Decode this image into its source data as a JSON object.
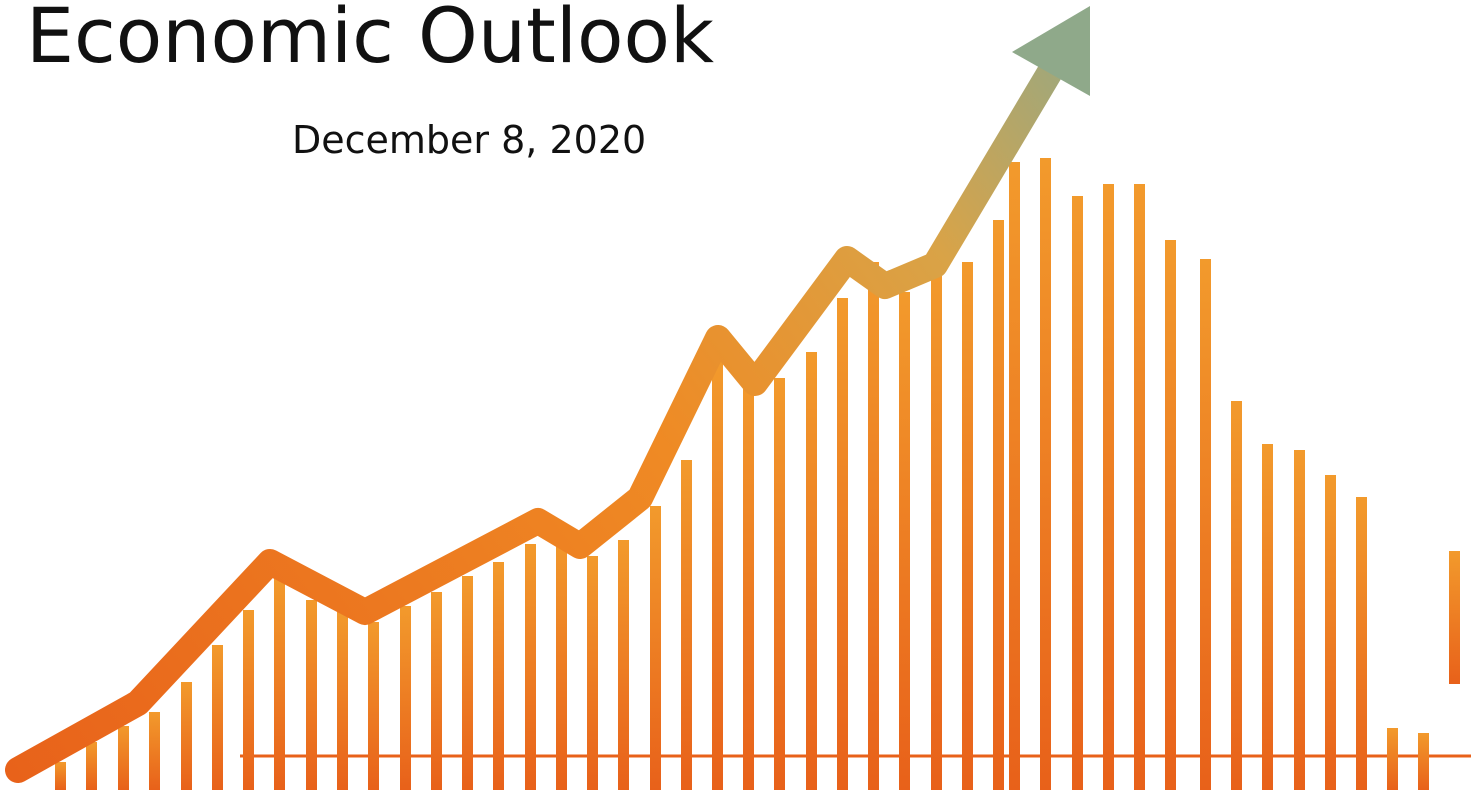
{
  "slide": {
    "title": "Economic Outlook",
    "date": "December 8, 2020"
  },
  "graphic": {
    "icon": "growth-chart-arrow-icon",
    "colors": {
      "bar": "#ef8a24",
      "bar_dark": "#e8611a",
      "arrow_start": "#e8611a",
      "arrow_mid": "#f0a030",
      "arrow_end": "#8fa98a"
    }
  }
}
